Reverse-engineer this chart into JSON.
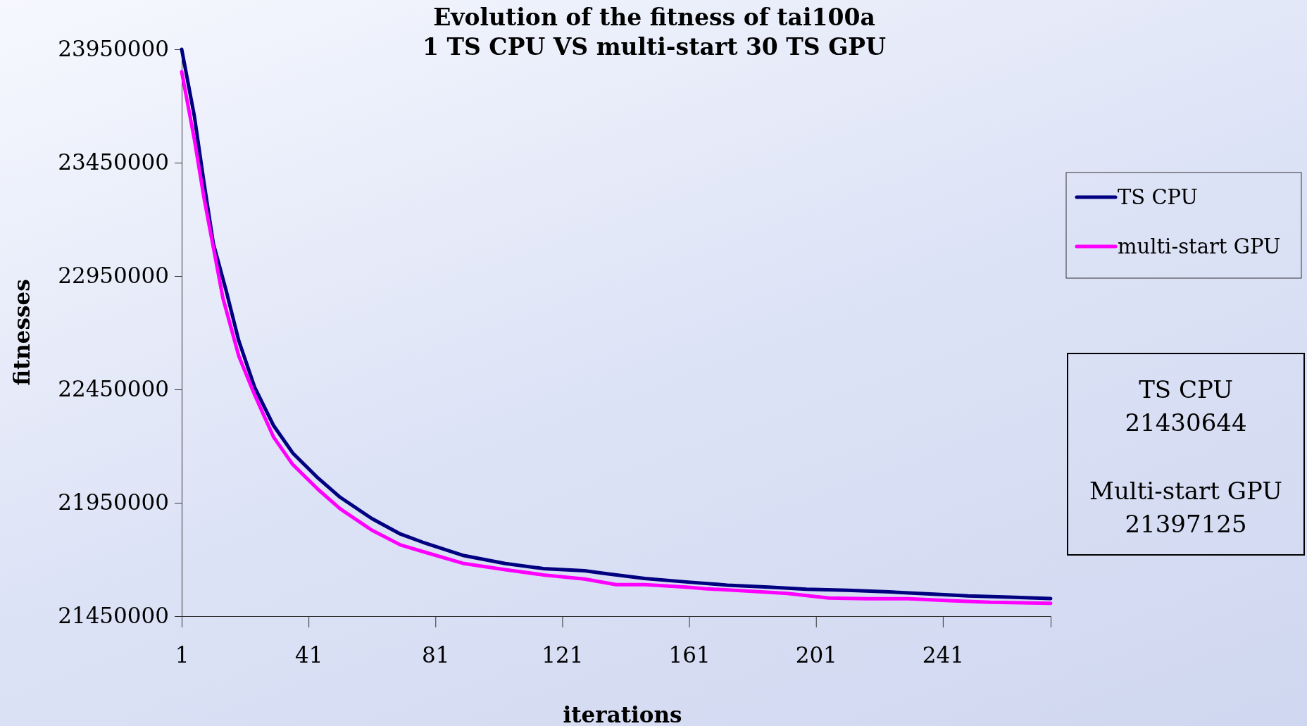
{
  "chart_data": {
    "type": "line",
    "title": "Evolution of the fitness of tai100a\n1 TS CPU VS multi-start 30 TS GPU",
    "xlabel": "iterations",
    "ylabel": "fitnesses",
    "xlim": [
      1,
      275
    ],
    "xticks": [
      1,
      41,
      81,
      121,
      161,
      201,
      241
    ],
    "ylim": [
      21450000,
      23950000
    ],
    "yticks": [
      21450000,
      21950000,
      22450000,
      22950000,
      23450000,
      23950000
    ],
    "legend": "right",
    "grid": false,
    "marker": "none",
    "line_style": "solid",
    "annotations": [
      "TS CPU\n21430644",
      "Multi-start GPU\n21397125"
    ],
    "series": [
      {
        "name": "TS CPU",
        "color": "#000080",
        "x": [
          1,
          5,
          8,
          11,
          15,
          19,
          24,
          30,
          36,
          44,
          51,
          61,
          70,
          77,
          90,
          103,
          115,
          128,
          135,
          147,
          160,
          173,
          186,
          198,
          211,
          224,
          237,
          249,
          262,
          275
        ],
        "values": [
          23950000,
          23655000,
          23365000,
          23092000,
          22887000,
          22665000,
          22460000,
          22290000,
          22170000,
          22059000,
          21974000,
          21880000,
          21812000,
          21776000,
          21717000,
          21682000,
          21660000,
          21650000,
          21637000,
          21616000,
          21601000,
          21587000,
          21578000,
          21569000,
          21564000,
          21557000,
          21548000,
          21539000,
          21534000,
          21528000
        ]
      },
      {
        "name": "multi-start GPU",
        "color": "#ff00ff",
        "x": [
          1,
          5,
          8,
          11,
          14,
          19,
          24,
          30,
          36,
          44,
          51,
          61,
          70,
          77,
          90,
          103,
          115,
          128,
          138,
          147,
          160,
          166,
          179,
          192,
          205,
          217,
          230,
          243,
          256,
          275
        ],
        "values": [
          23851000,
          23552000,
          23297000,
          23075000,
          22853000,
          22597000,
          22426000,
          22239000,
          22119000,
          22009000,
          21923000,
          21829000,
          21764000,
          21735000,
          21682000,
          21655000,
          21632000,
          21614000,
          21589000,
          21589000,
          21578000,
          21571000,
          21561000,
          21550000,
          21530000,
          21527000,
          21527000,
          21518000,
          21511000,
          21507000
        ]
      }
    ]
  }
}
